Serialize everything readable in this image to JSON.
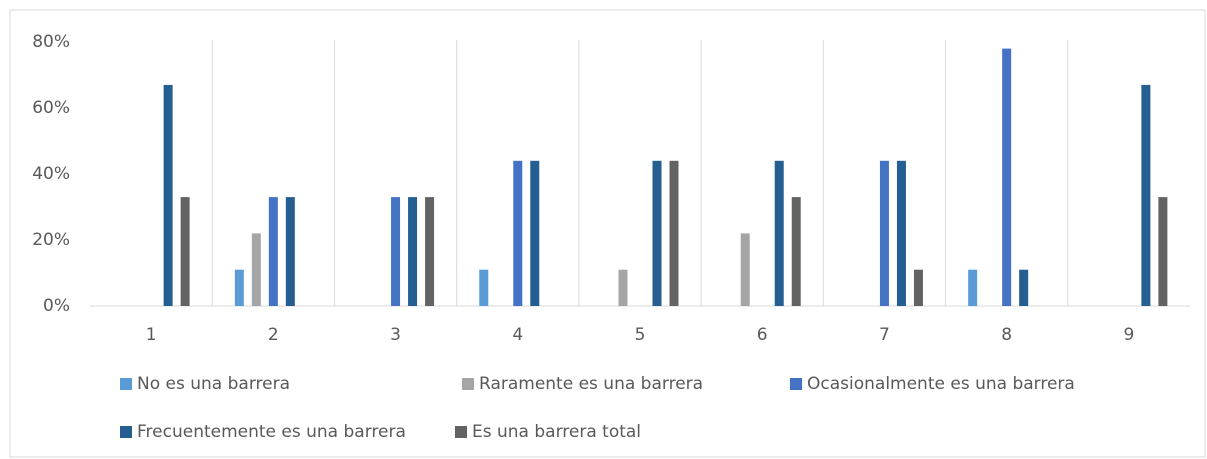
{
  "chart_data": {
    "type": "bar",
    "categories": [
      "1",
      "2",
      "3",
      "4",
      "5",
      "6",
      "7",
      "8",
      "9"
    ],
    "series": [
      {
        "name": "No es una barrera",
        "color": "#5b9bd5",
        "values": [
          0,
          11,
          0,
          11,
          0,
          0,
          0,
          11,
          0
        ]
      },
      {
        "name": "Raramente es una barrera",
        "color": "#a5a5a5",
        "values": [
          0,
          22,
          0,
          0,
          11,
          22,
          0,
          0,
          0
        ]
      },
      {
        "name": "Ocasionalmente es una barrera",
        "color": "#4472c4",
        "values": [
          0,
          33,
          33,
          44,
          0,
          0,
          44,
          78,
          0
        ]
      },
      {
        "name": "Frecuentemente es una barrera",
        "color": "#255e91",
        "values": [
          67,
          33,
          33,
          44,
          44,
          44,
          44,
          11,
          67
        ]
      },
      {
        "name": "Es una barrera total",
        "color": "#636363",
        "values": [
          33,
          0,
          33,
          0,
          44,
          33,
          11,
          0,
          33
        ]
      }
    ],
    "ylim": [
      0,
      80
    ],
    "yticks": [
      {
        "value": 0,
        "label": "0%"
      },
      {
        "value": 20,
        "label": "20%"
      },
      {
        "value": 40,
        "label": "40%"
      },
      {
        "value": 60,
        "label": "60%"
      },
      {
        "value": 80,
        "label": "80%"
      }
    ],
    "legend": "bottom"
  }
}
